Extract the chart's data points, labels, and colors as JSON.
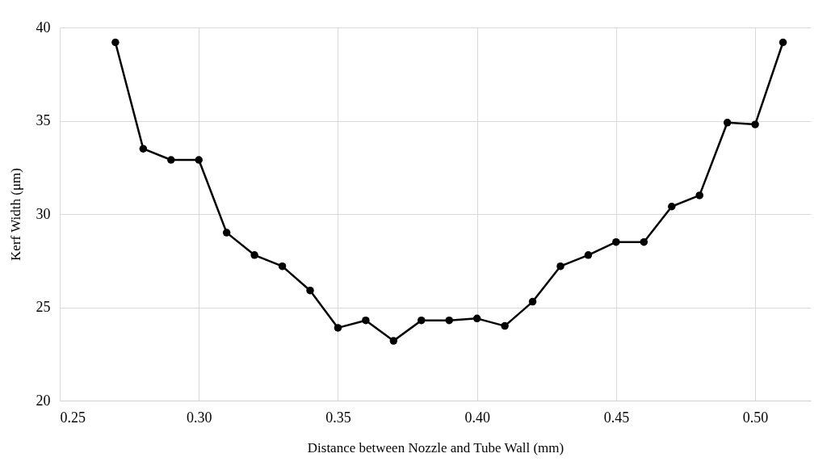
{
  "chart_data": {
    "type": "line",
    "xlabel": "Distance between Nozzle and Tube Wall (mm)",
    "ylabel": "Kerf Width (μm)",
    "x": [
      0.27,
      0.28,
      0.29,
      0.3,
      0.31,
      0.32,
      0.33,
      0.34,
      0.35,
      0.36,
      0.37,
      0.38,
      0.39,
      0.4,
      0.41,
      0.42,
      0.43,
      0.44,
      0.45,
      0.46,
      0.47,
      0.48,
      0.49,
      0.5,
      0.51
    ],
    "series": [
      {
        "color": "#000000",
        "values": [
          39.2,
          33.5,
          32.9,
          32.9,
          29.0,
          27.8,
          27.2,
          25.9,
          23.9,
          24.3,
          23.2,
          24.3,
          24.3,
          24.4,
          24.0,
          25.3,
          27.2,
          27.8,
          28.5,
          28.5,
          30.4,
          31.0,
          34.9,
          34.8,
          39.2
        ]
      }
    ],
    "xlim": [
      0.25,
      0.52
    ],
    "xticks": [
      {
        "value": 0.25,
        "label": "0.25"
      },
      {
        "value": 0.3,
        "label": "0.30"
      },
      {
        "value": 0.35,
        "label": "0.35"
      },
      {
        "value": 0.4,
        "label": "0.40"
      },
      {
        "value": 0.45,
        "label": "0.45"
      },
      {
        "value": 0.5,
        "label": "0.50"
      }
    ],
    "ylim": [
      20,
      40
    ],
    "yticks": [
      20,
      25,
      30,
      35,
      40
    ],
    "grid": true,
    "marker": "circle",
    "line_style": "solid"
  }
}
